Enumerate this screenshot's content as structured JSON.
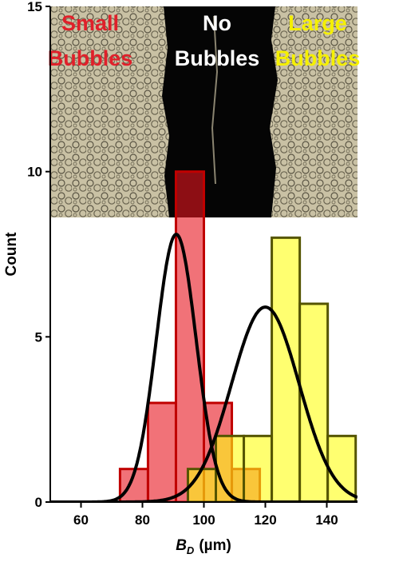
{
  "chart_data": {
    "type": "histogram",
    "xlabel": {
      "symbol": "B",
      "subscript": "D",
      "unit": "(µm)"
    },
    "ylabel": "Count",
    "xlim": [
      50,
      150
    ],
    "ylim": [
      0,
      15
    ],
    "xticks": [
      60,
      80,
      100,
      120,
      140
    ],
    "yticks": [
      0,
      5,
      10,
      15
    ],
    "series": [
      {
        "color": "#e8141e",
        "edge": "#c00000",
        "bins": [
          72.7,
          81.8,
          90.9,
          100,
          109.1,
          118.2
        ],
        "values": [
          1,
          3,
          10,
          3,
          1
        ],
        "fit": {
          "mean": 91,
          "sd": 6.5,
          "peak": 8.1
        }
      },
      {
        "color": "#ffff10",
        "edge": "#555500",
        "bins": [
          94.8,
          103.9,
          113,
          122.1,
          131.2,
          140.3,
          149.4
        ],
        "values": [
          1,
          2,
          2,
          8,
          6,
          2
        ],
        "fit": {
          "mean": 120,
          "sd": 11,
          "peak": 5.9
        }
      }
    ],
    "inset_labels": [
      {
        "lines": [
          "Small",
          "Bubbles"
        ],
        "color": "#e0202a"
      },
      {
        "lines": [
          "No",
          "Bubbles"
        ],
        "color": "#ffffff"
      },
      {
        "lines": [
          "Large",
          "Bubbles"
        ],
        "color": "#f5f000"
      }
    ]
  }
}
